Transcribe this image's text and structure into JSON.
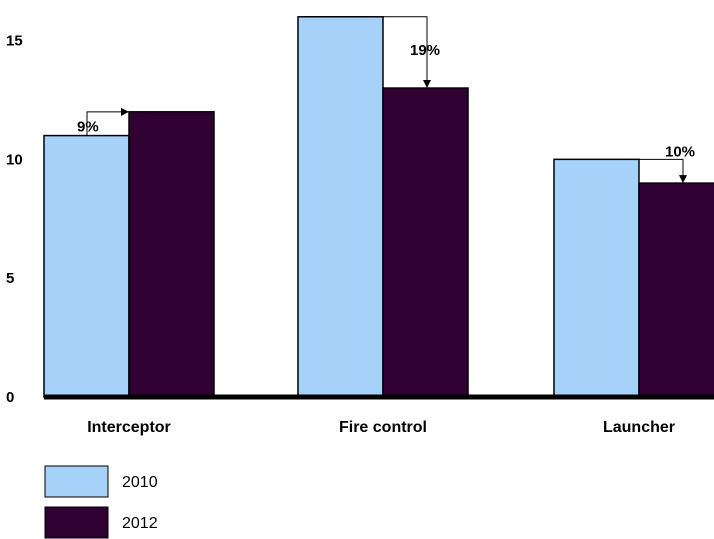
{
  "chart_data": {
    "type": "bar",
    "categories": [
      "Interceptor",
      "Fire control",
      "Launcher"
    ],
    "series": [
      {
        "name": "2010",
        "color": "#a6d1f8",
        "values": [
          11,
          16,
          10
        ]
      },
      {
        "name": "2012",
        "color": "#310032",
        "values": [
          12,
          13,
          9
        ]
      }
    ],
    "yticks": [
      0,
      5,
      10,
      15
    ],
    "ylim": [
      0,
      16.2
    ],
    "annotations": [
      {
        "category": "Interceptor",
        "label": "9%",
        "direction": "up"
      },
      {
        "category": "Fire control",
        "label": "19%",
        "direction": "down"
      },
      {
        "category": "Launcher",
        "label": "10%",
        "direction": "down"
      }
    ],
    "legend_position": "bottom-left",
    "grid": false,
    "title": "",
    "xlabel": "",
    "ylabel": ""
  }
}
